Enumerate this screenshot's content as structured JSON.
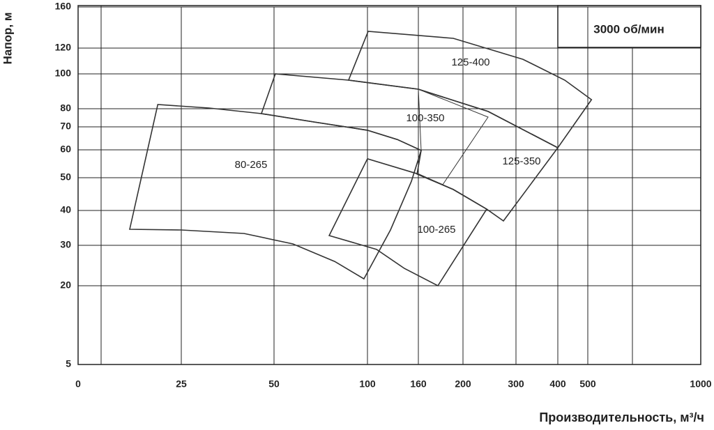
{
  "chart_data": {
    "type": "region",
    "annotation": "3000 об/мин",
    "x_label": "Производительность, м³/ч",
    "y_label": "Напор, м",
    "xticks": [
      0,
      25,
      50,
      100,
      160,
      200,
      300,
      400,
      500,
      1000
    ],
    "yticks": [
      5,
      20,
      30,
      40,
      50,
      60,
      70,
      80,
      100,
      120,
      160
    ],
    "xlim": [
      0,
      1000
    ],
    "ylim": [
      5,
      160
    ],
    "grid": true,
    "color": "#333333",
    "series": [
      {
        "name": "80-265",
        "x": [
          12.5,
          19.3,
          32.5,
          46.6,
          71.3,
          100,
          135.3,
          162.5,
          151.8,
          127.1,
          98.1,
          82.5,
          60.1,
          41.9,
          25
        ],
        "y": [
          34.6,
          82.4,
          80.4,
          77.3,
          72.7,
          68.5,
          64.5,
          59.8,
          48.9,
          34.4,
          21.7,
          26.0,
          30.4,
          33.4,
          34.4
        ]
      },
      {
        "name": "125-400",
        "x": [
          89.9,
          100.8,
          191.3,
          316.7,
          423.3,
          516.3,
          400,
          247.4,
          160
        ],
        "y": [
          96.4,
          136.3,
          129.5,
          111.3,
          96.4,
          85.2,
          60.9,
          78.5,
          91.2
        ]
      },
      {
        "name": "125-350",
        "x": [
          46.6,
          50.7,
          89.9,
          160,
          247.4,
          400,
          276.3,
          244.7,
          191.3,
          158.4,
          162.5,
          135.3,
          100,
          71.3
        ],
        "y": [
          77.3,
          100,
          96.4,
          91.2,
          78.5,
          60.9,
          37,
          40.4,
          46.4,
          51.3,
          59.8,
          64.5,
          68.5,
          72.7
        ]
      },
      {
        "name": "100-350",
        "x": [
          160,
          247.4,
          181.9,
          158.4,
          162.5
        ],
        "y": [
          91.2,
          75.4,
          47.9,
          51.3,
          59.8
        ]
      },
      {
        "name": "100-265",
        "x": [
          79.5,
          100,
          160,
          191.3,
          244.7,
          177.5,
          143.5,
          110.7
        ],
        "y": [
          32.8,
          56.8,
          51.3,
          46.4,
          40.4,
          20,
          24.3,
          29
        ]
      }
    ]
  }
}
